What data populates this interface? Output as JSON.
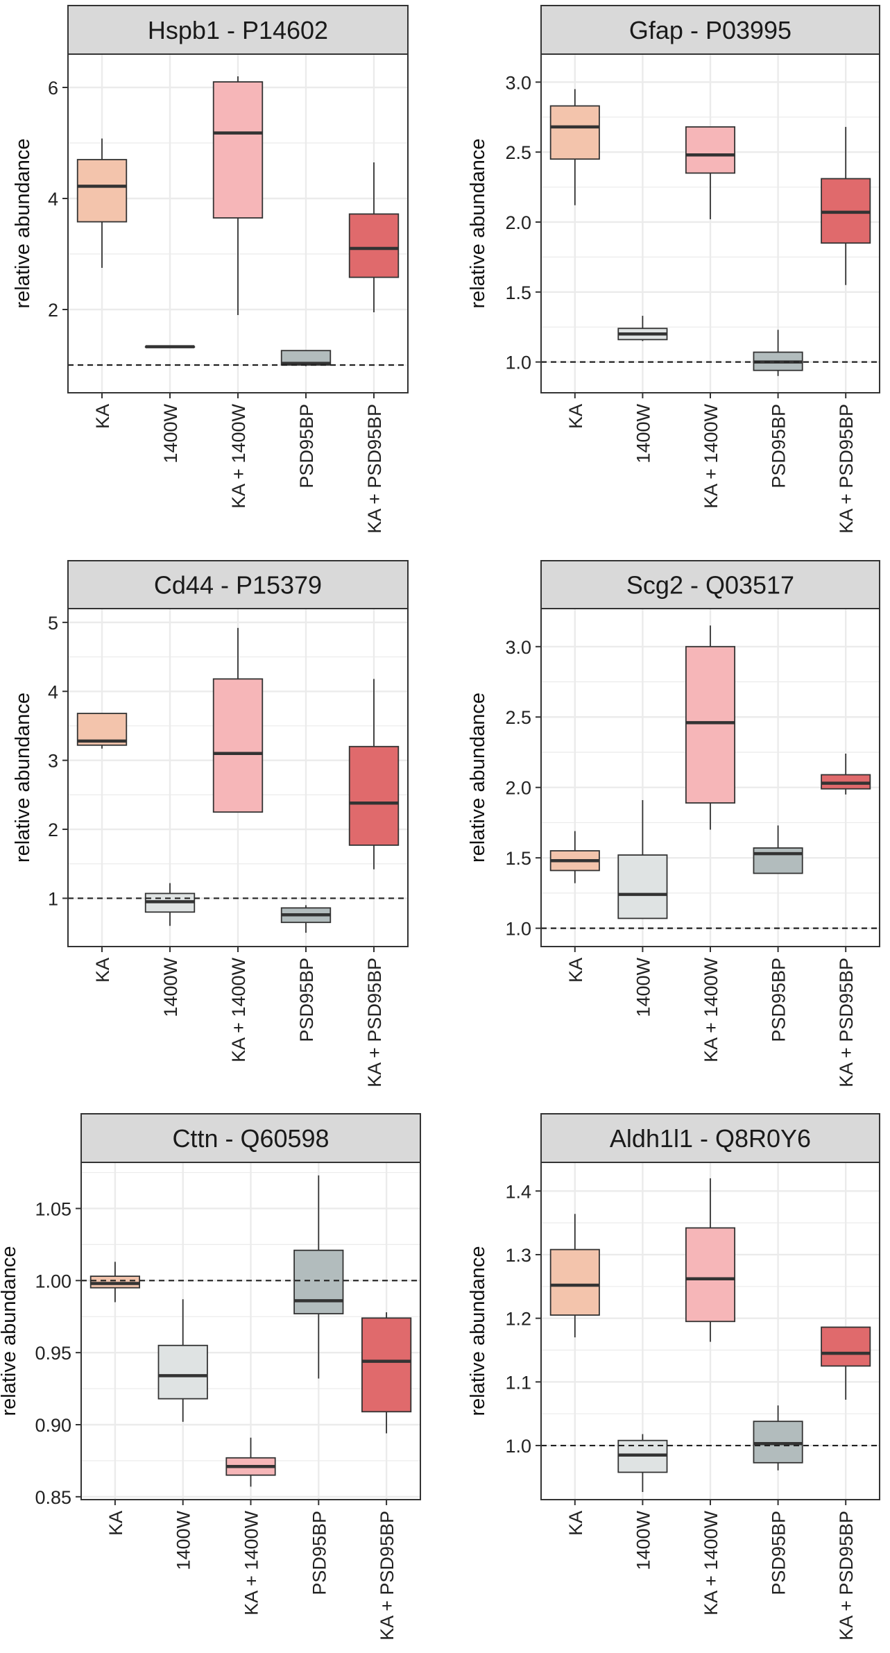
{
  "colors": {
    "KA": "#f3c4ac",
    "1400W": "#dfe3e3",
    "KA + 1400W": "#f6b6b8",
    "PSD95BP": "#b2bcbd",
    "KA + PSD95BP": "#e06a6c",
    "strip": "#d9d9d9",
    "grid": "#ebebeb",
    "dashed": "#222222"
  },
  "chart_data": [
    {
      "type": "box",
      "title": "Hspb1 - P14602",
      "ylabel": "relative abundance",
      "categories": [
        "KA",
        "1400W",
        "KA + 1400W",
        "PSD95BP",
        "KA + PSD95BP"
      ],
      "ylim": [
        0.5,
        6.6
      ],
      "yticks": [
        2,
        4,
        6
      ],
      "yticklabels": [
        "2",
        "4",
        "6"
      ],
      "minor_ticks": [
        1,
        3,
        5
      ],
      "reference_line": 1,
      "boxes": [
        {
          "lower": 2.75,
          "q1": 3.58,
          "median": 4.22,
          "q3": 4.7,
          "upper": 5.08
        },
        {
          "lower": 1.33,
          "q1": 1.33,
          "median": 1.33,
          "q3": 1.33,
          "upper": 1.33
        },
        {
          "lower": 1.9,
          "q1": 3.65,
          "median": 5.18,
          "q3": 6.1,
          "upper": 6.2
        },
        {
          "lower": 0.98,
          "q1": 1.0,
          "median": 1.03,
          "q3": 1.26,
          "upper": 1.26
        },
        {
          "lower": 1.95,
          "q1": 2.58,
          "median": 3.1,
          "q3": 3.72,
          "upper": 4.65
        }
      ]
    },
    {
      "type": "box",
      "title": "Gfap - P03995",
      "ylabel": "relative abundance",
      "categories": [
        "KA",
        "1400W",
        "KA + 1400W",
        "PSD95BP",
        "KA + PSD95BP"
      ],
      "ylim": [
        0.78,
        3.2
      ],
      "yticks": [
        1.0,
        1.5,
        2.0,
        2.5,
        3.0
      ],
      "yticklabels": [
        "1.0",
        "1.5",
        "2.0",
        "2.5",
        "3.0"
      ],
      "minor_ticks": [
        1.25,
        1.75,
        2.25,
        2.75
      ],
      "reference_line": 1,
      "boxes": [
        {
          "lower": 2.12,
          "q1": 2.45,
          "median": 2.68,
          "q3": 2.83,
          "upper": 2.95
        },
        {
          "lower": 1.15,
          "q1": 1.16,
          "median": 1.2,
          "q3": 1.24,
          "upper": 1.33
        },
        {
          "lower": 2.02,
          "q1": 2.35,
          "median": 2.48,
          "q3": 2.68,
          "upper": 2.68
        },
        {
          "lower": 0.9,
          "q1": 0.94,
          "median": 1.0,
          "q3": 1.07,
          "upper": 1.23
        },
        {
          "lower": 1.55,
          "q1": 1.85,
          "median": 2.07,
          "q3": 2.31,
          "upper": 2.68
        }
      ]
    },
    {
      "type": "box",
      "title": "Cd44 - P15379",
      "ylabel": "relative abundance",
      "categories": [
        "KA",
        "1400W",
        "KA + 1400W",
        "PSD95BP",
        "KA + PSD95BP"
      ],
      "ylim": [
        0.3,
        5.2
      ],
      "yticks": [
        1,
        2,
        3,
        4,
        5
      ],
      "yticklabels": [
        "1",
        "2",
        "3",
        "4",
        "5"
      ],
      "minor_ticks": [
        1.5,
        2.5,
        3.5,
        4.5
      ],
      "reference_line": 1,
      "boxes": [
        {
          "lower": 3.17,
          "q1": 3.22,
          "median": 3.28,
          "q3": 3.68,
          "upper": 3.68
        },
        {
          "lower": 0.6,
          "q1": 0.8,
          "median": 0.95,
          "q3": 1.07,
          "upper": 1.22
        },
        {
          "lower": 2.25,
          "q1": 2.25,
          "median": 3.1,
          "q3": 4.18,
          "upper": 4.92
        },
        {
          "lower": 0.5,
          "q1": 0.65,
          "median": 0.76,
          "q3": 0.86,
          "upper": 0.9
        },
        {
          "lower": 1.42,
          "q1": 1.77,
          "median": 2.38,
          "q3": 3.2,
          "upper": 4.18
        }
      ]
    },
    {
      "type": "box",
      "title": "Scg2 - Q03517",
      "ylabel": "relative abundance",
      "categories": [
        "KA",
        "1400W",
        "KA + 1400W",
        "PSD95BP",
        "KA + PSD95BP"
      ],
      "ylim": [
        0.87,
        3.27
      ],
      "yticks": [
        1.0,
        1.5,
        2.0,
        2.5,
        3.0
      ],
      "yticklabels": [
        "1.0",
        "1.5",
        "2.0",
        "2.5",
        "3.0"
      ],
      "minor_ticks": [
        1.25,
        1.75,
        2.25,
        2.75
      ],
      "reference_line": 1,
      "boxes": [
        {
          "lower": 1.32,
          "q1": 1.41,
          "median": 1.48,
          "q3": 1.55,
          "upper": 1.69
        },
        {
          "lower": 1.07,
          "q1": 1.07,
          "median": 1.24,
          "q3": 1.52,
          "upper": 1.91
        },
        {
          "lower": 1.7,
          "q1": 1.89,
          "median": 2.46,
          "q3": 3.0,
          "upper": 3.15
        },
        {
          "lower": 1.39,
          "q1": 1.39,
          "median": 1.53,
          "q3": 1.57,
          "upper": 1.73
        },
        {
          "lower": 1.95,
          "q1": 1.99,
          "median": 2.03,
          "q3": 2.09,
          "upper": 2.24
        }
      ]
    },
    {
      "type": "box",
      "title": "Cttn - Q60598",
      "ylabel": "relative abundance",
      "categories": [
        "KA",
        "1400W",
        "KA + 1400W",
        "PSD95BP",
        "KA + PSD95BP"
      ],
      "ylim": [
        0.848,
        1.082
      ],
      "yticks": [
        0.85,
        0.9,
        0.95,
        1.0,
        1.05
      ],
      "yticklabels": [
        "0.85",
        "0.90",
        "0.95",
        "1.00",
        "1.05"
      ],
      "minor_ticks": [
        0.875,
        0.925,
        0.975,
        1.025,
        1.075
      ],
      "reference_line": 1,
      "boxes": [
        {
          "lower": 0.985,
          "q1": 0.995,
          "median": 0.998,
          "q3": 1.003,
          "upper": 1.013
        },
        {
          "lower": 0.902,
          "q1": 0.918,
          "median": 0.934,
          "q3": 0.955,
          "upper": 0.987
        },
        {
          "lower": 0.857,
          "q1": 0.865,
          "median": 0.871,
          "q3": 0.877,
          "upper": 0.891
        },
        {
          "lower": 0.932,
          "q1": 0.977,
          "median": 0.986,
          "q3": 1.021,
          "upper": 1.073
        },
        {
          "lower": 0.894,
          "q1": 0.909,
          "median": 0.944,
          "q3": 0.974,
          "upper": 0.978
        }
      ]
    },
    {
      "type": "box",
      "title": "Aldh1l1 - Q8R0Y6",
      "ylabel": "relative abundance",
      "categories": [
        "KA",
        "1400W",
        "KA + 1400W",
        "PSD95BP",
        "KA + PSD95BP"
      ],
      "ylim": [
        0.915,
        1.445
      ],
      "yticks": [
        1.0,
        1.1,
        1.2,
        1.3,
        1.4
      ],
      "yticklabels": [
        "1.0",
        "1.1",
        "1.2",
        "1.3",
        "1.4"
      ],
      "minor_ticks": [
        1.05,
        1.15,
        1.25,
        1.35
      ],
      "reference_line": 1,
      "boxes": [
        {
          "lower": 1.17,
          "q1": 1.205,
          "median": 1.252,
          "q3": 1.308,
          "upper": 1.364
        },
        {
          "lower": 0.927,
          "q1": 0.958,
          "median": 0.985,
          "q3": 1.008,
          "upper": 1.018
        },
        {
          "lower": 1.163,
          "q1": 1.195,
          "median": 1.262,
          "q3": 1.342,
          "upper": 1.42
        },
        {
          "lower": 0.961,
          "q1": 0.973,
          "median": 1.003,
          "q3": 1.038,
          "upper": 1.063
        },
        {
          "lower": 1.072,
          "q1": 1.125,
          "median": 1.145,
          "q3": 1.186,
          "upper": 1.186
        }
      ]
    }
  ]
}
